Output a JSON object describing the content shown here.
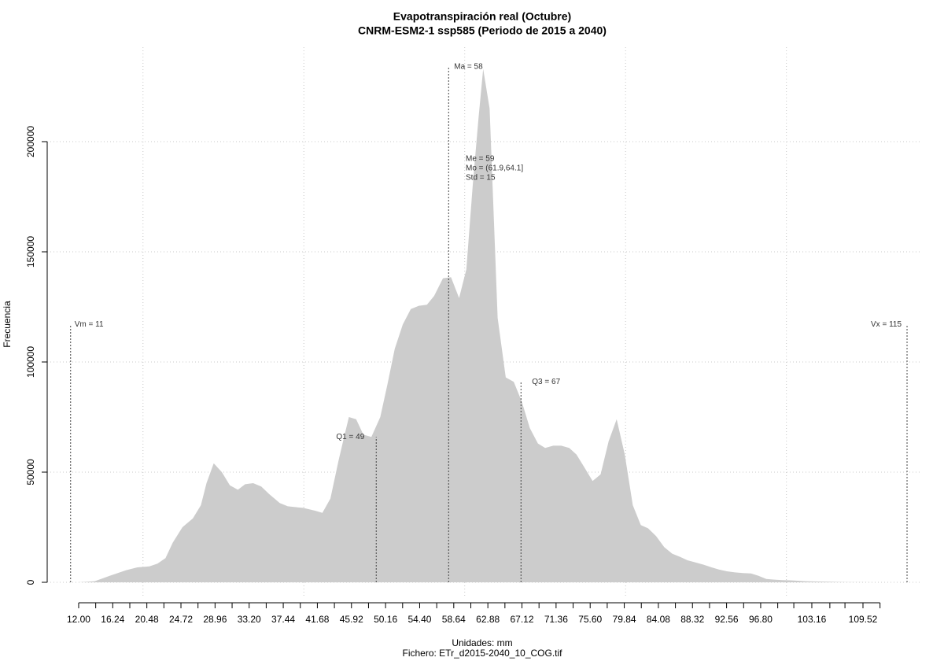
{
  "chart_data": {
    "type": "area",
    "title": "Evapotranspiración real (Octubre)",
    "subtitle": "CNRM-ESM2-1 ssp585 (Periodo de 2015 a 2040)",
    "x_label": "Unidades: mm",
    "caption": "Fichero: ETr_d2015-2040_10_COG.tif",
    "y_label": "Frecuencia",
    "color": "#cccccc",
    "x": [
      12.0,
      14.0,
      15.9,
      17.9,
      19.3,
      20.8,
      21.8,
      22.8,
      23.7,
      24.9,
      26.2,
      27.2,
      27.9,
      28.8,
      29.8,
      30.8,
      31.8,
      32.7,
      33.7,
      34.7,
      35.7,
      37.0,
      38.0,
      39.9,
      41.4,
      42.3,
      43.3,
      44.3,
      45.0,
      45.6,
      46.5,
      47.4,
      48.4,
      49.5,
      50.4,
      51.3,
      52.3,
      53.3,
      54.3,
      55.3,
      56.2,
      57.3,
      58.3,
      59.3,
      60.2,
      61.0,
      61.7,
      62.3,
      63.1,
      64.1,
      65.1,
      66.1,
      67.1,
      68.1,
      69.1,
      70.0,
      71.0,
      72.0,
      73.0,
      73.9,
      74.9,
      75.9,
      76.9,
      77.9,
      78.9,
      79.9,
      80.9,
      81.9,
      82.8,
      83.8,
      84.8,
      85.8,
      86.8,
      87.7,
      88.7,
      89.7,
      90.7,
      91.6,
      92.6,
      93.6,
      94.6,
      95.6,
      96.5,
      97.5,
      98.5,
      99.5,
      100.5,
      101.4,
      102.4,
      103.4,
      105.3,
      107.3,
      109.3,
      111.2,
      112.6
    ],
    "values": [
      0,
      500,
      3000,
      5500,
      6800,
      7200,
      8500,
      11000,
      18000,
      25000,
      29000,
      35000,
      45000,
      54000,
      50000,
      44000,
      42000,
      44500,
      45000,
      43500,
      40000,
      36000,
      34500,
      33800,
      32500,
      31500,
      38000,
      55000,
      66000,
      75000,
      74000,
      67000,
      66000,
      75000,
      90000,
      106000,
      117000,
      124000,
      125500,
      126000,
      130000,
      138000,
      138500,
      129000,
      142000,
      180000,
      210000,
      233000,
      215000,
      120000,
      93000,
      91000,
      82000,
      70000,
      63000,
      61000,
      62000,
      62000,
      61000,
      58000,
      52000,
      46000,
      49000,
      64000,
      74000,
      58000,
      35000,
      26000,
      24500,
      21000,
      16000,
      13000,
      11500,
      10000,
      9000,
      8000,
      6800,
      5800,
      5000,
      4500,
      4200,
      4000,
      3000,
      1500,
      1200,
      1000,
      900,
      700,
      500,
      400,
      300,
      100,
      50,
      0,
      0
    ],
    "xlim": [
      8.09,
      116.66
    ],
    "ylim": [
      -7143,
      242857
    ],
    "xticks": [
      {
        "value": 12.0,
        "label": "12.00"
      },
      {
        "value": 16.24,
        "label": "16.24"
      },
      {
        "value": 20.48,
        "label": "20.48"
      },
      {
        "value": 24.72,
        "label": "24.72"
      },
      {
        "value": 28.96,
        "label": "28.96"
      },
      {
        "value": 33.2,
        "label": "33.20"
      },
      {
        "value": 37.44,
        "label": "37.44"
      },
      {
        "value": 41.68,
        "label": "41.68"
      },
      {
        "value": 45.92,
        "label": "45.92"
      },
      {
        "value": 50.16,
        "label": "50.16"
      },
      {
        "value": 54.4,
        "label": "54.40"
      },
      {
        "value": 58.64,
        "label": "58.64"
      },
      {
        "value": 62.88,
        "label": "62.88"
      },
      {
        "value": 67.12,
        "label": "67.12"
      },
      {
        "value": 71.36,
        "label": "71.36"
      },
      {
        "value": 75.6,
        "label": "75.60"
      },
      {
        "value": 79.84,
        "label": "79.84"
      },
      {
        "value": 84.08,
        "label": "84.08"
      },
      {
        "value": 88.32,
        "label": "88.32"
      },
      {
        "value": 92.56,
        "label": "92.56"
      },
      {
        "value": 96.8,
        "label": "96.80"
      },
      {
        "value": 103.16,
        "label": "103.16"
      },
      {
        "value": 109.52,
        "label": "109.52"
      }
    ],
    "xminor_ticks": [
      14.12,
      18.36,
      22.6,
      26.84,
      31.08,
      35.32,
      39.56,
      43.8,
      48.04,
      52.28,
      56.52,
      60.76,
      65.0,
      69.24,
      73.48,
      77.72,
      81.96,
      86.2,
      90.44,
      94.68,
      98.92,
      100.92,
      105.4,
      107.28,
      111.64
    ],
    "xgrid": [
      20,
      40,
      60,
      80,
      100
    ],
    "yticks": [
      0,
      50000,
      100000,
      150000,
      200000
    ],
    "grid": true,
    "annotations": [
      {
        "label": "Vm = 11",
        "x": 11,
        "y": 117000
      },
      {
        "label": "Q1 = 49",
        "x": 49,
        "y": 66000
      },
      {
        "label": "Ma = 58",
        "x": 58,
        "y": 234000
      },
      {
        "label": "Q3 = 67",
        "x": 67,
        "y": 91000
      },
      {
        "label": "Vx = 115",
        "x": 115,
        "y": 117000
      }
    ],
    "stats_text": [
      "Me = 59",
      "Mo = (61.9,64.1]",
      "Std = 15"
    ]
  }
}
